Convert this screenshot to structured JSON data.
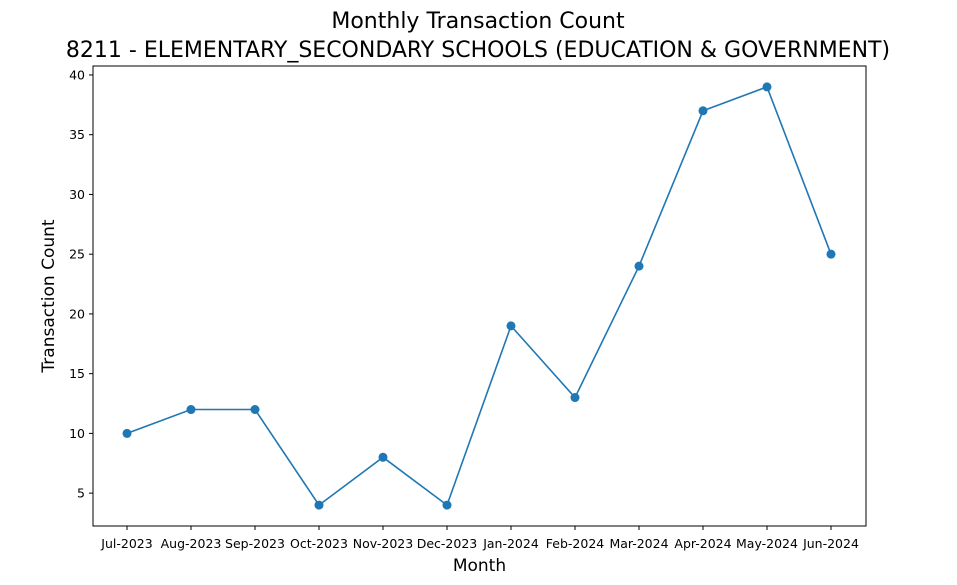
{
  "chart_data": {
    "type": "line",
    "title": "Monthly Transaction Count",
    "subtitle": "8211 - ELEMENTARY_SECONDARY SCHOOLS (EDUCATION & GOVERNMENT)",
    "xlabel": "Month",
    "ylabel": "Transaction Count",
    "categories": [
      "Jul-2023",
      "Aug-2023",
      "Sep-2023",
      "Oct-2023",
      "Nov-2023",
      "Dec-2023",
      "Jan-2024",
      "Feb-2024",
      "Mar-2024",
      "Apr-2024",
      "May-2024",
      "Jun-2024"
    ],
    "values": [
      10,
      12,
      12,
      4,
      8,
      4,
      19,
      13,
      24,
      37,
      39,
      25
    ],
    "yticks": [
      5,
      10,
      15,
      20,
      25,
      30,
      35,
      40
    ],
    "ylim": [
      2.25,
      40.75
    ],
    "grid": false,
    "markers": true,
    "line_color": "#1f77b4"
  }
}
